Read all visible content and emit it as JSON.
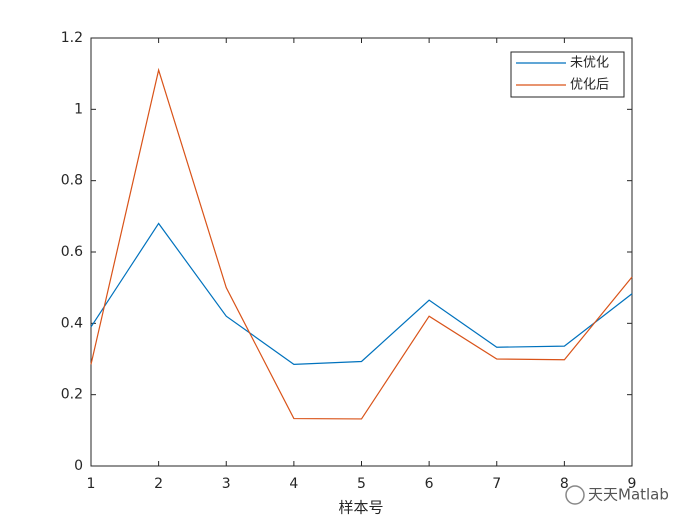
{
  "chart_data": {
    "type": "line",
    "x": [
      1,
      2,
      3,
      4,
      5,
      6,
      7,
      8,
      9
    ],
    "xlim": [
      1,
      9
    ],
    "xticks": [
      1,
      2,
      3,
      4,
      5,
      6,
      7,
      8,
      9
    ],
    "ylim": [
      0,
      1.2
    ],
    "yticks": [
      0,
      0.2,
      0.4,
      0.6,
      0.8,
      1,
      1.2
    ],
    "xlabel": "样本号",
    "legend": "upper right",
    "series": [
      {
        "name": "未优化",
        "color": "#0072bd",
        "values": [
          0.39,
          0.68,
          0.42,
          0.285,
          0.293,
          0.465,
          0.333,
          0.336,
          0.483
        ]
      },
      {
        "name": "优化后",
        "color": "#d95319",
        "values": [
          0.285,
          1.11,
          0.5,
          0.133,
          0.132,
          0.42,
          0.3,
          0.298,
          0.53
        ]
      }
    ]
  },
  "watermark": "天天Matlab"
}
